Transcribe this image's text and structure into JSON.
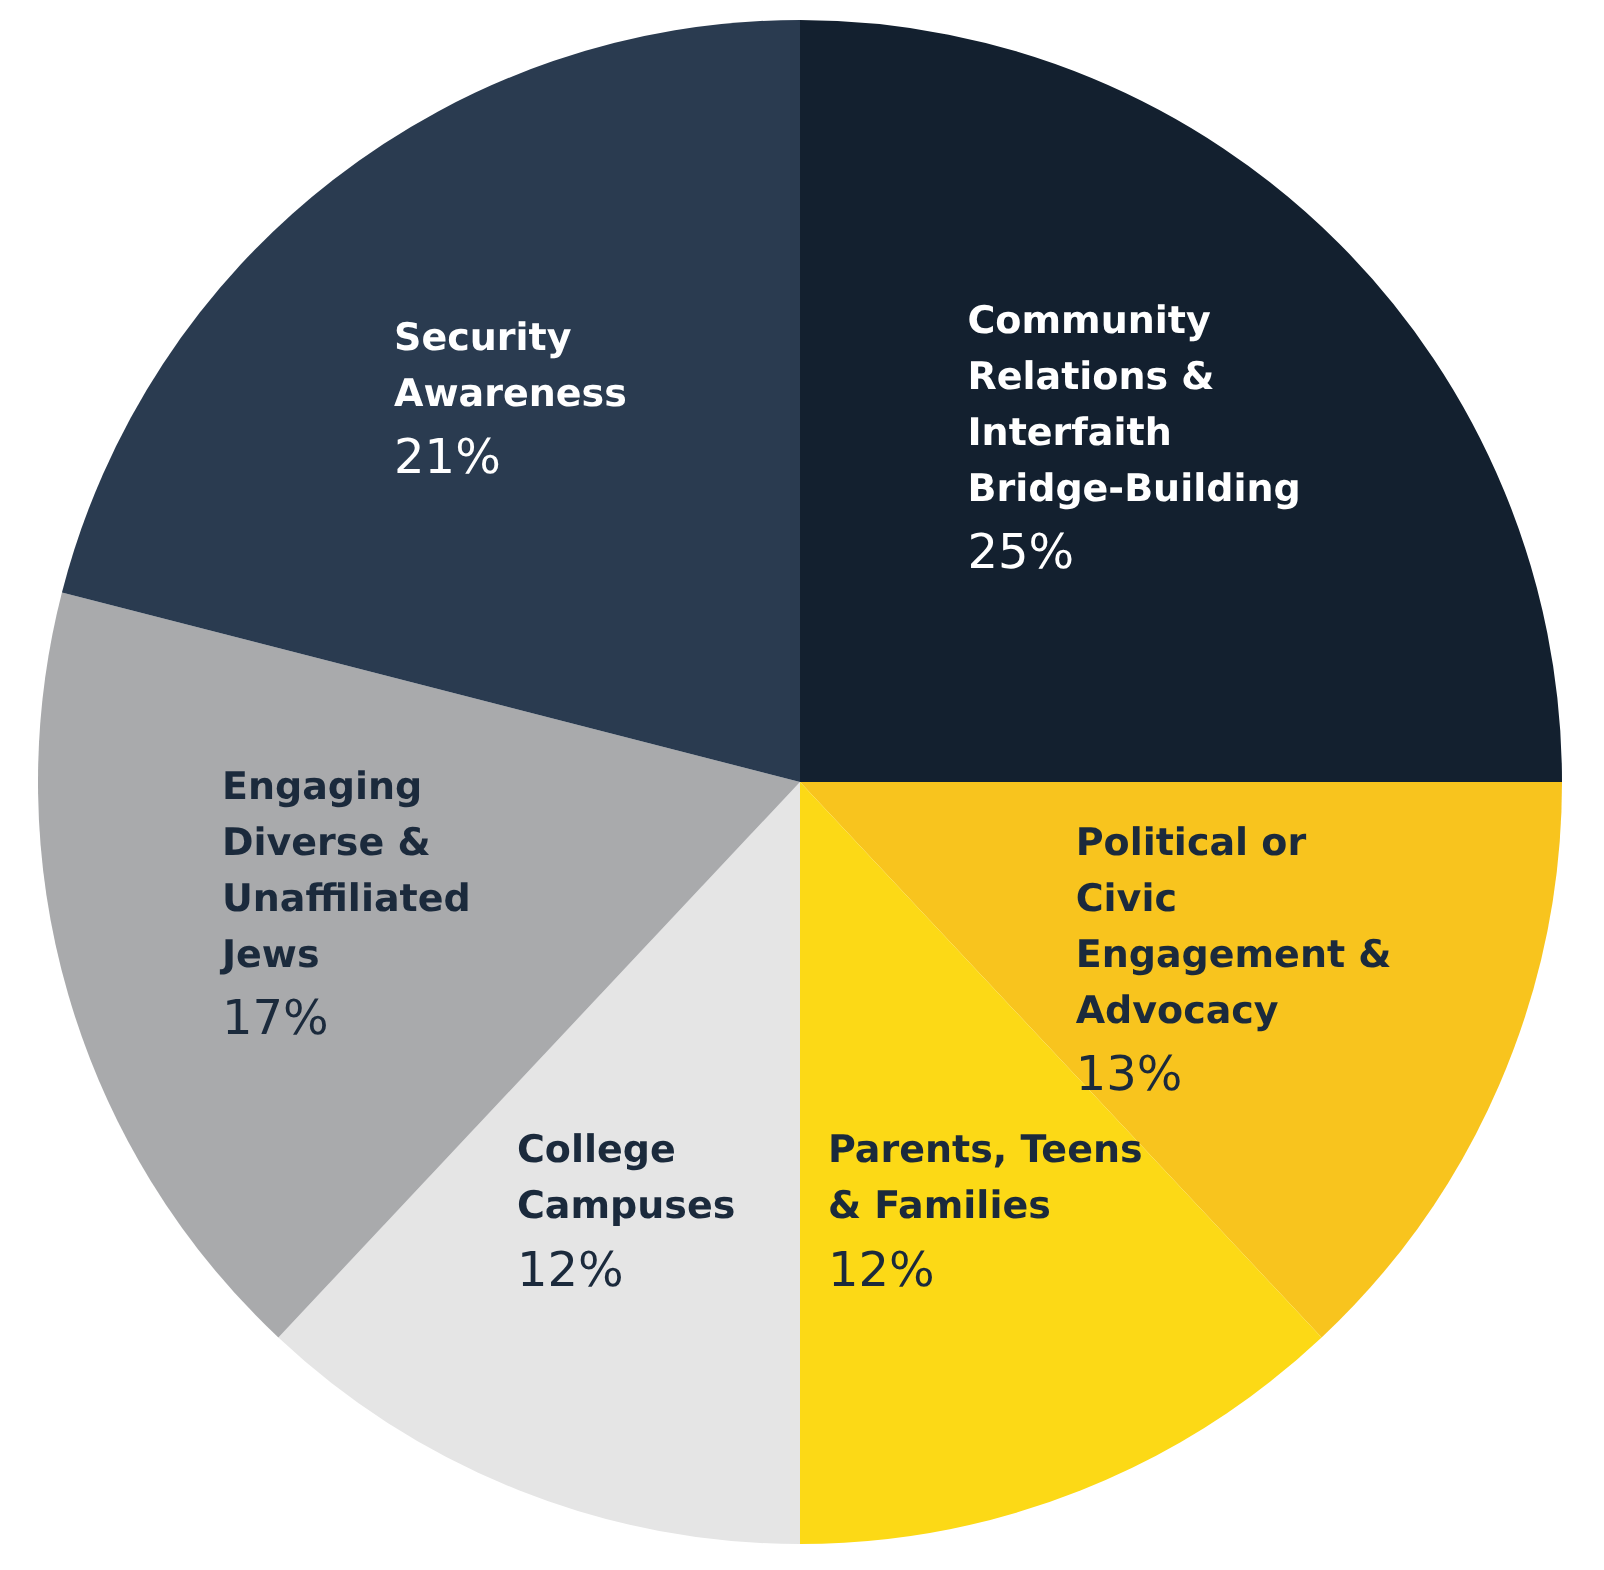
{
  "chart_data": {
    "type": "pie",
    "categories": [
      "Community Relations & Interfaith Bridge-Building",
      "Political or Civic Engagement & Advocacy",
      "Parents, Teens & Families",
      "College Campuses",
      "Engaging Diverse & Unaffiliated Jews",
      "Security Awareness"
    ],
    "values": [
      25,
      13,
      12,
      12,
      17,
      21
    ],
    "value_labels": [
      "25%",
      "13%",
      "12%",
      "12%",
      "17%",
      "21%"
    ],
    "colors": [
      "#13202f",
      "#f8c41e",
      "#fcd916",
      "#e5e5e5",
      "#a9aaac",
      "#2a3b50"
    ],
    "legend": false
  }
}
